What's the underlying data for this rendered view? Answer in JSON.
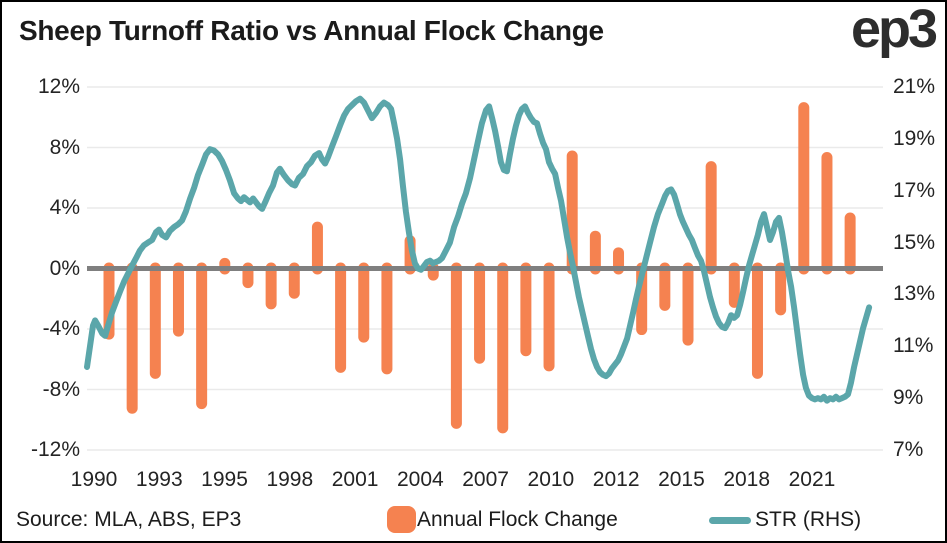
{
  "header": {
    "title": "Sheep Turnoff Ratio vs Annual Flock Change",
    "logo": "ep3"
  },
  "footer": {
    "source": "Source: MLA, ABS, EP3",
    "legend": [
      {
        "label": "Annual Flock Change",
        "type": "bar"
      },
      {
        "label": "STR (RHS)",
        "type": "line"
      }
    ]
  },
  "colors": {
    "bar": "#F58250",
    "line": "#5BA6AA",
    "zero_line": "#7F7F7F",
    "gridline": "#EAEAEA",
    "text": "#242424"
  },
  "chart_data": {
    "type": "combo",
    "title": "Sheep Turnoff Ratio vs Annual Flock Change",
    "left_axis": {
      "labels": [
        "12%",
        "8%",
        "4%",
        "0%",
        "-4%",
        "-8%",
        "-12%"
      ],
      "min": -12,
      "max": 12
    },
    "right_axis": {
      "labels": [
        "21%",
        "19%",
        "17%",
        "15%",
        "13%",
        "11%",
        "9%",
        "7%"
      ],
      "min": 7,
      "max": 21
    },
    "x_axis": {
      "labels": [
        "1990",
        "1993",
        "1995",
        "1998",
        "2001",
        "2004",
        "2007",
        "2010",
        "2012",
        "2015",
        "2018",
        "2021"
      ]
    },
    "grid": true,
    "legend_position": "bottom",
    "series": [
      {
        "name": "Annual Flock Change",
        "type": "bar",
        "axis": "left",
        "years": [
          1990,
          1991,
          1992,
          1993,
          1994,
          1995,
          1996,
          1997,
          1998,
          1999,
          2000,
          2001,
          2002,
          2003,
          2004,
          2005,
          2006,
          2007,
          2008,
          2009,
          2010,
          2011,
          2012,
          2013,
          2014,
          2015,
          2016,
          2017,
          2018,
          2019,
          2020,
          2021,
          2022
        ],
        "values": [
          -4.7,
          -9.6,
          -7.3,
          -4.5,
          -9.3,
          0.7,
          -1.3,
          -2.7,
          -2.0,
          3.1,
          -6.9,
          -4.9,
          -7.0,
          2.2,
          -0.8,
          -10.6,
          -6.3,
          -10.9,
          -5.8,
          -6.8,
          7.8,
          2.5,
          1.4,
          -4.4,
          -2.8,
          -5.1,
          7.1,
          -2.6,
          -7.3,
          -3.1,
          11.0,
          7.7,
          3.7
        ]
      },
      {
        "name": "STR (RHS)",
        "type": "line",
        "axis": "right",
        "points": [
          [
            1989.05,
            10.2
          ],
          [
            1989.18,
            11.0
          ],
          [
            1989.31,
            11.8
          ],
          [
            1989.4,
            12.0
          ],
          [
            1989.53,
            11.8
          ],
          [
            1989.7,
            11.5
          ],
          [
            1989.83,
            11.4
          ],
          [
            1989.96,
            11.8
          ],
          [
            1990.13,
            12.3
          ],
          [
            1990.3,
            12.7
          ],
          [
            1990.47,
            13.1
          ],
          [
            1990.65,
            13.5
          ],
          [
            1990.82,
            13.8
          ],
          [
            1990.99,
            14.1
          ],
          [
            1991.17,
            14.4
          ],
          [
            1991.34,
            14.7
          ],
          [
            1991.51,
            14.9
          ],
          [
            1991.68,
            15.0
          ],
          [
            1991.86,
            15.1
          ],
          [
            1992.03,
            15.4
          ],
          [
            1992.16,
            15.5
          ],
          [
            1992.29,
            15.3
          ],
          [
            1992.46,
            15.2
          ],
          [
            1992.63,
            15.45
          ],
          [
            1992.81,
            15.6
          ],
          [
            1992.98,
            15.7
          ],
          [
            1993.15,
            15.85
          ],
          [
            1993.32,
            16.2
          ],
          [
            1993.5,
            16.7
          ],
          [
            1993.67,
            17.1
          ],
          [
            1993.84,
            17.6
          ],
          [
            1994.02,
            18.0
          ],
          [
            1994.19,
            18.4
          ],
          [
            1994.36,
            18.6
          ],
          [
            1994.53,
            18.55
          ],
          [
            1994.71,
            18.4
          ],
          [
            1994.88,
            18.15
          ],
          [
            1995.05,
            17.8
          ],
          [
            1995.22,
            17.4
          ],
          [
            1995.4,
            16.9
          ],
          [
            1995.57,
            16.7
          ],
          [
            1995.7,
            16.6
          ],
          [
            1995.83,
            16.75
          ],
          [
            1995.96,
            16.65
          ],
          [
            1996.09,
            16.55
          ],
          [
            1996.22,
            16.7
          ],
          [
            1996.35,
            16.55
          ],
          [
            1996.48,
            16.4
          ],
          [
            1996.61,
            16.3
          ],
          [
            1996.74,
            16.55
          ],
          [
            1996.91,
            16.9
          ],
          [
            1997.08,
            17.2
          ],
          [
            1997.25,
            17.7
          ],
          [
            1997.38,
            17.85
          ],
          [
            1997.56,
            17.6
          ],
          [
            1997.73,
            17.4
          ],
          [
            1997.9,
            17.25
          ],
          [
            1998.03,
            17.2
          ],
          [
            1998.2,
            17.5
          ],
          [
            1998.38,
            17.65
          ],
          [
            1998.55,
            17.95
          ],
          [
            1998.72,
            18.1
          ],
          [
            1998.89,
            18.35
          ],
          [
            1999.07,
            18.45
          ],
          [
            1999.2,
            18.2
          ],
          [
            1999.33,
            18.05
          ],
          [
            1999.46,
            18.3
          ],
          [
            1999.63,
            18.7
          ],
          [
            1999.8,
            19.1
          ],
          [
            1999.97,
            19.5
          ],
          [
            2000.15,
            19.9
          ],
          [
            2000.32,
            20.15
          ],
          [
            2000.49,
            20.3
          ],
          [
            2000.66,
            20.45
          ],
          [
            2000.84,
            20.55
          ],
          [
            2001.01,
            20.4
          ],
          [
            2001.18,
            20.1
          ],
          [
            2001.35,
            19.8
          ],
          [
            2001.53,
            20.0
          ],
          [
            2001.7,
            20.25
          ],
          [
            2001.87,
            20.4
          ],
          [
            2002.05,
            20.3
          ],
          [
            2002.18,
            20.15
          ],
          [
            2002.31,
            19.6
          ],
          [
            2002.44,
            19.0
          ],
          [
            2002.57,
            18.2
          ],
          [
            2002.69,
            17.2
          ],
          [
            2002.82,
            16.2
          ],
          [
            2002.95,
            15.4
          ],
          [
            2003.08,
            14.7
          ],
          [
            2003.21,
            14.2
          ],
          [
            2003.34,
            14.0
          ],
          [
            2003.47,
            13.95
          ],
          [
            2003.6,
            14.1
          ],
          [
            2003.73,
            14.25
          ],
          [
            2003.86,
            14.3
          ],
          [
            2003.99,
            14.2
          ],
          [
            2004.12,
            14.25
          ],
          [
            2004.25,
            14.3
          ],
          [
            2004.38,
            14.4
          ],
          [
            2004.55,
            14.7
          ],
          [
            2004.72,
            15.0
          ],
          [
            2004.9,
            15.6
          ],
          [
            2005.07,
            16.0
          ],
          [
            2005.24,
            16.5
          ],
          [
            2005.41,
            16.9
          ],
          [
            2005.59,
            17.5
          ],
          [
            2005.76,
            18.2
          ],
          [
            2005.93,
            18.9
          ],
          [
            2006.1,
            19.6
          ],
          [
            2006.28,
            20.1
          ],
          [
            2006.41,
            20.25
          ],
          [
            2006.54,
            19.8
          ],
          [
            2006.67,
            19.3
          ],
          [
            2006.8,
            18.7
          ],
          [
            2006.92,
            18.1
          ],
          [
            2007.05,
            17.8
          ],
          [
            2007.18,
            17.75
          ],
          [
            2007.31,
            18.4
          ],
          [
            2007.44,
            19.0
          ],
          [
            2007.57,
            19.5
          ],
          [
            2007.7,
            19.9
          ],
          [
            2007.83,
            20.15
          ],
          [
            2007.96,
            20.25
          ],
          [
            2008.09,
            20.0
          ],
          [
            2008.22,
            19.8
          ],
          [
            2008.35,
            19.65
          ],
          [
            2008.48,
            19.6
          ],
          [
            2008.61,
            19.2
          ],
          [
            2008.74,
            18.85
          ],
          [
            2008.87,
            18.6
          ],
          [
            2009.0,
            18.1
          ],
          [
            2009.13,
            17.85
          ],
          [
            2009.26,
            17.65
          ],
          [
            2009.39,
            17.1
          ],
          [
            2009.52,
            16.6
          ],
          [
            2009.65,
            15.9
          ],
          [
            2009.78,
            15.2
          ],
          [
            2009.91,
            14.6
          ],
          [
            2010.03,
            14.1
          ],
          [
            2010.16,
            13.5
          ],
          [
            2010.29,
            12.9
          ],
          [
            2010.42,
            12.4
          ],
          [
            2010.55,
            11.9
          ],
          [
            2010.68,
            11.4
          ],
          [
            2010.81,
            10.9
          ],
          [
            2010.94,
            10.5
          ],
          [
            2011.07,
            10.2
          ],
          [
            2011.2,
            10.0
          ],
          [
            2011.33,
            9.9
          ],
          [
            2011.46,
            9.85
          ],
          [
            2011.59,
            9.95
          ],
          [
            2011.72,
            10.15
          ],
          [
            2011.85,
            10.3
          ],
          [
            2011.98,
            10.45
          ],
          [
            2012.11,
            10.7
          ],
          [
            2012.24,
            11.0
          ],
          [
            2012.37,
            11.3
          ],
          [
            2012.5,
            11.8
          ],
          [
            2012.63,
            12.3
          ],
          [
            2012.75,
            12.8
          ],
          [
            2012.88,
            13.3
          ],
          [
            2013.01,
            13.75
          ],
          [
            2013.19,
            14.4
          ],
          [
            2013.36,
            15.0
          ],
          [
            2013.53,
            15.6
          ],
          [
            2013.7,
            16.1
          ],
          [
            2013.88,
            16.5
          ],
          [
            2014.01,
            16.8
          ],
          [
            2014.14,
            17.0
          ],
          [
            2014.27,
            17.05
          ],
          [
            2014.4,
            16.85
          ],
          [
            2014.52,
            16.5
          ],
          [
            2014.65,
            16.1
          ],
          [
            2014.78,
            15.8
          ],
          [
            2014.91,
            15.55
          ],
          [
            2015.04,
            15.3
          ],
          [
            2015.17,
            15.1
          ],
          [
            2015.3,
            14.8
          ],
          [
            2015.43,
            14.5
          ],
          [
            2015.56,
            14.3
          ],
          [
            2015.69,
            13.9
          ],
          [
            2015.82,
            13.4
          ],
          [
            2015.95,
            12.9
          ],
          [
            2016.08,
            12.5
          ],
          [
            2016.21,
            12.15
          ],
          [
            2016.34,
            11.9
          ],
          [
            2016.47,
            11.75
          ],
          [
            2016.6,
            11.7
          ],
          [
            2016.73,
            11.9
          ],
          [
            2016.86,
            12.2
          ],
          [
            2016.99,
            12.1
          ],
          [
            2017.12,
            12.2
          ],
          [
            2017.25,
            12.6
          ],
          [
            2017.38,
            13.1
          ],
          [
            2017.5,
            13.6
          ],
          [
            2017.63,
            14.1
          ],
          [
            2017.76,
            14.5
          ],
          [
            2017.89,
            14.9
          ],
          [
            2018.02,
            15.3
          ],
          [
            2018.15,
            15.8
          ],
          [
            2018.28,
            16.1
          ],
          [
            2018.41,
            15.6
          ],
          [
            2018.54,
            15.1
          ],
          [
            2018.67,
            15.4
          ],
          [
            2018.8,
            15.8
          ],
          [
            2018.93,
            15.95
          ],
          [
            2019.06,
            15.4
          ],
          [
            2019.19,
            14.7
          ],
          [
            2019.32,
            13.9
          ],
          [
            2019.45,
            13.3
          ],
          [
            2019.58,
            12.5
          ],
          [
            2019.71,
            11.6
          ],
          [
            2019.84,
            10.7
          ],
          [
            2019.97,
            9.9
          ],
          [
            2020.09,
            9.4
          ],
          [
            2020.22,
            9.1
          ],
          [
            2020.35,
            9.0
          ],
          [
            2020.48,
            8.95
          ],
          [
            2020.61,
            9.0
          ],
          [
            2020.74,
            8.95
          ],
          [
            2020.87,
            9.05
          ],
          [
            2021.0,
            8.9
          ],
          [
            2021.13,
            9.0
          ],
          [
            2021.26,
            8.95
          ],
          [
            2021.39,
            9.05
          ],
          [
            2021.52,
            8.95
          ],
          [
            2021.65,
            9.0
          ],
          [
            2021.78,
            9.05
          ],
          [
            2021.91,
            9.15
          ],
          [
            2022.04,
            9.6
          ],
          [
            2022.17,
            10.2
          ],
          [
            2022.3,
            10.7
          ],
          [
            2022.43,
            11.2
          ],
          [
            2022.56,
            11.7
          ],
          [
            2022.69,
            12.1
          ],
          [
            2022.82,
            12.5
          ]
        ]
      }
    ]
  }
}
